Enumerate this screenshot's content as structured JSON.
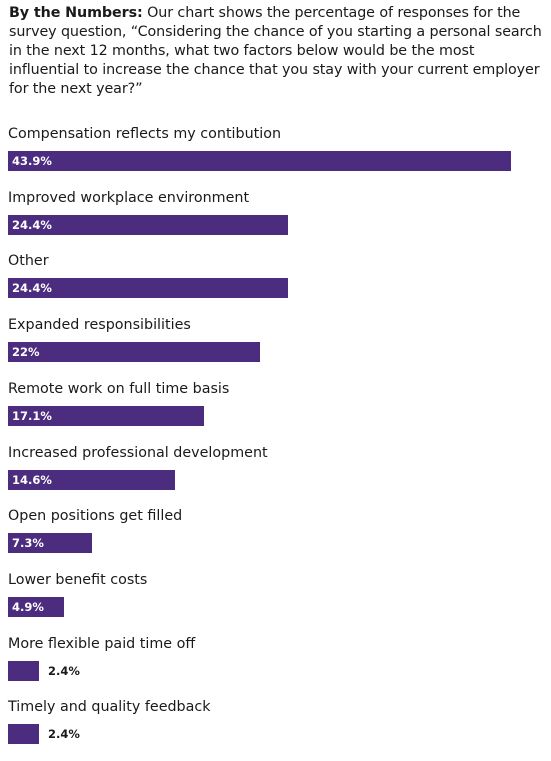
{
  "intro": {
    "lead": "By the Numbers:",
    "text": "Our chart shows the percentage of responses for the survey question, “Considering the chance of you starting a personal search in the next 12 months, what two factors below would be the most influential to increase the chance that you stay with your current employer for the next year?”"
  },
  "colors": {
    "bar": "#4b2c7e",
    "text": "#1a1a1a"
  },
  "chart_data": {
    "type": "bar",
    "orientation": "horizontal",
    "unit": "%",
    "categories": [
      "Compensation reflects my contibution",
      "Improved workplace environment",
      "Other",
      "Expanded responsibilities",
      "Remote work on full time basis",
      "Increased professional development",
      "Open positions get filled",
      "Lower benefit costs",
      "More flexible paid time off",
      "Timely and quality feedback"
    ],
    "values": [
      43.9,
      24.4,
      24.4,
      22,
      17.1,
      14.6,
      7.3,
      4.9,
      2.4,
      2.4
    ],
    "value_labels": [
      "43.9%",
      "24.4%",
      "24.4%",
      "22%",
      "17.1%",
      "14.6%",
      "7.3%",
      "4.9%",
      "2.4%",
      "2.4%"
    ],
    "xlim": [
      0,
      43.9
    ],
    "grid": false,
    "legend": "none"
  }
}
